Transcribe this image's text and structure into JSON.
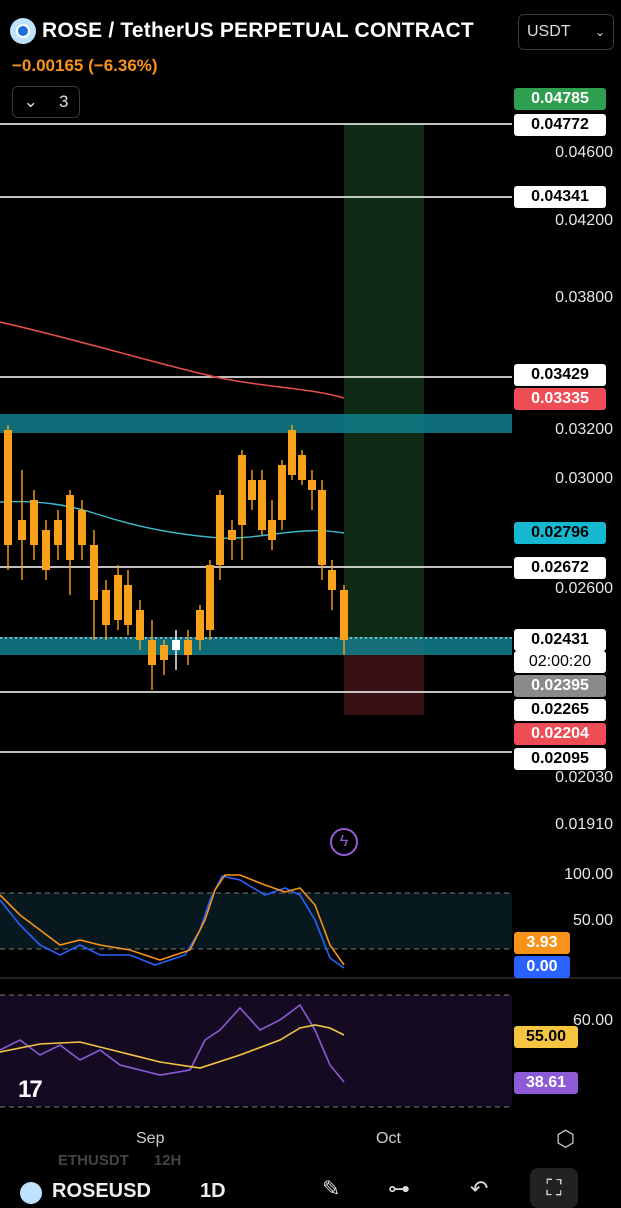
{
  "header": {
    "symbol_title": "ROSE / TetherUS PERPETUAL CONTRACT",
    "change": "−0.00165 (−6.36%)",
    "collapse_count": "3",
    "currency": "USDT"
  },
  "price_axis": [
    "0.04600",
    "0.04200",
    "0.03800",
    "0.03200",
    "0.03000",
    "0.02600",
    "0.02030",
    "0.01910"
  ],
  "price_tags": [
    {
      "text": "0.04785",
      "bg": "#2e9e4f",
      "fg": "#ffffff"
    },
    {
      "text": "0.04772",
      "bg": "#ffffff",
      "fg": "#000000"
    },
    {
      "text": "0.04341",
      "bg": "#ffffff",
      "fg": "#000000"
    },
    {
      "text": "0.03429",
      "bg": "#ffffff",
      "fg": "#000000"
    },
    {
      "text": "0.03335",
      "bg": "#ef4d56",
      "fg": "#ffffff"
    },
    {
      "text": "0.02796",
      "bg": "#16b7d0",
      "fg": "#000000"
    },
    {
      "text": "0.02672",
      "bg": "#ffffff",
      "fg": "#000000"
    },
    {
      "text": "0.02431",
      "bg": "#ffffff",
      "fg": "#000000"
    },
    {
      "text": "02:00:20",
      "bg": "#ffffff",
      "fg": "#000000"
    },
    {
      "text": "0.02395",
      "bg": "#8a8a8a",
      "fg": "#ffffff"
    },
    {
      "text": "0.02265",
      "bg": "#ffffff",
      "fg": "#000000"
    },
    {
      "text": "0.02204",
      "bg": "#ef4d56",
      "fg": "#ffffff"
    },
    {
      "text": "0.02095",
      "bg": "#ffffff",
      "fg": "#000000"
    }
  ],
  "stoch": {
    "levels": [
      "100.00",
      "50.00"
    ],
    "k_value": "3.93",
    "d_value": "0.00",
    "k_color": "#f7931a",
    "d_color": "#2962ff"
  },
  "rsi": {
    "level": "60.00",
    "ma_value": "55.00",
    "rsi_value": "38.61",
    "ma_color": "#f5c542",
    "rsi_color": "#8e5bd6"
  },
  "time_axis": [
    "Sep",
    "Oct"
  ],
  "bottom_bar": {
    "ghost_symbol": "ETHUSDT",
    "ghost_interval": "12H",
    "symbol": "ROSEUSD",
    "interval": "1D"
  },
  "chart_data": {
    "type": "candlestick",
    "title": "ROSE / TetherUS PERPETUAL CONTRACT",
    "current_price": 0.02431,
    "key_levels": [
      0.04772,
      0.04341,
      0.03429,
      0.02672,
      0.02265,
      0.02095
    ],
    "moving_averages": {
      "ma_red": 0.03335,
      "ma_cyan": 0.02796
    },
    "zones": {
      "resistance": [
        0.0316,
        0.0319
      ],
      "support": [
        0.0239,
        0.0242
      ]
    },
    "position": {
      "entry": 0.02431,
      "target": 0.04785,
      "stop": 0.02204
    }
  }
}
